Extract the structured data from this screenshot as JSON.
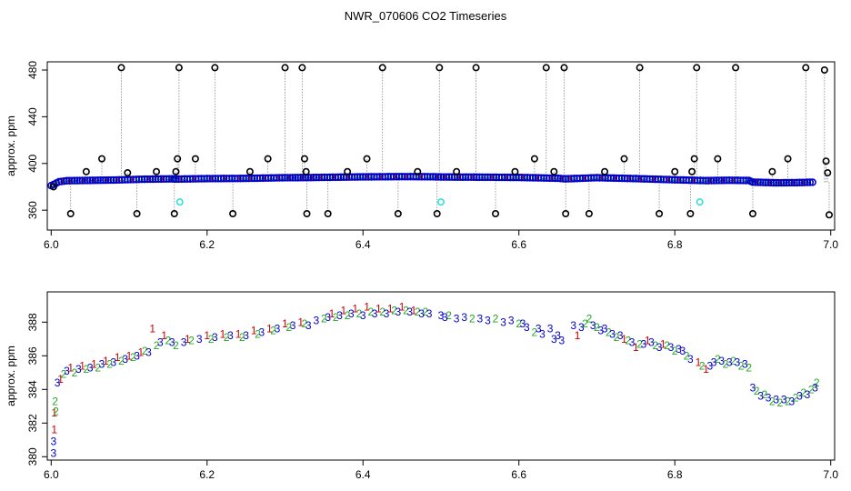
{
  "title": "NWR_070606  CO2 Timeseries",
  "colors": {
    "outlier": "#000000",
    "cyan": "#33dddd",
    "blue": "#0000cc",
    "green": "#22aa22",
    "red": "#cc0000",
    "series3": "#0000cc",
    "line": "#888888"
  },
  "chart_data": [
    {
      "type": "scatter",
      "title": "",
      "xlabel": "",
      "ylabel": "approx. ppm",
      "xlim": [
        5.995,
        7.005
      ],
      "ylim": [
        343,
        487
      ],
      "xticks": [
        6.0,
        6.2,
        6.4,
        6.6,
        6.8,
        7.0
      ],
      "xtick_labels": [
        "6.0",
        "6.2",
        "6.4",
        "6.6",
        "6.8",
        "7.0"
      ],
      "yticks": [
        360,
        400,
        440,
        480
      ],
      "ytick_labels": [
        "360",
        "400",
        "440",
        "480"
      ],
      "baseline": [
        [
          6.0,
          381.0
        ],
        [
          6.01,
          384.3
        ],
        [
          6.02,
          385.2
        ],
        [
          6.05,
          385.5
        ],
        [
          6.08,
          385.8
        ],
        [
          6.12,
          386.5
        ],
        [
          6.155,
          386.8
        ],
        [
          6.16,
          386.6
        ],
        [
          6.2,
          387.0
        ],
        [
          6.25,
          387.2
        ],
        [
          6.3,
          387.8
        ],
        [
          6.33,
          387.9
        ],
        [
          6.34,
          388.0
        ],
        [
          6.4,
          388.5
        ],
        [
          6.45,
          388.7
        ],
        [
          6.49,
          388.6
        ],
        [
          6.5,
          388.4
        ],
        [
          6.56,
          388.2
        ],
        [
          6.6,
          388.0
        ],
        [
          6.65,
          387.3
        ],
        [
          6.66,
          386.8
        ],
        [
          6.7,
          387.8
        ],
        [
          6.75,
          387.0
        ],
        [
          6.8,
          386.0
        ],
        [
          6.84,
          385.3
        ],
        [
          6.87,
          385.6
        ],
        [
          6.895,
          385.4
        ],
        [
          6.9,
          384.0
        ],
        [
          6.93,
          383.4
        ],
        [
          6.96,
          383.6
        ],
        [
          6.98,
          384.0
        ]
      ],
      "outliers": [
        [
          6.003,
          380
        ],
        [
          6.025,
          357
        ],
        [
          6.045,
          393
        ],
        [
          6.065,
          404
        ],
        [
          6.09,
          482
        ],
        [
          6.098,
          392
        ],
        [
          6.11,
          357
        ],
        [
          6.135,
          393
        ],
        [
          6.158,
          357
        ],
        [
          6.16,
          393
        ],
        [
          6.162,
          404
        ],
        [
          6.164,
          482
        ],
        [
          6.185,
          404
        ],
        [
          6.21,
          482
        ],
        [
          6.233,
          357
        ],
        [
          6.255,
          393
        ],
        [
          6.278,
          404
        ],
        [
          6.3,
          482
        ],
        [
          6.322,
          482
        ],
        [
          6.325,
          404
        ],
        [
          6.327,
          393
        ],
        [
          6.328,
          357
        ],
        [
          6.355,
          357
        ],
        [
          6.38,
          393
        ],
        [
          6.405,
          404
        ],
        [
          6.425,
          482
        ],
        [
          6.445,
          357
        ],
        [
          6.47,
          393
        ],
        [
          6.495,
          357
        ],
        [
          6.498,
          482
        ],
        [
          6.52,
          393
        ],
        [
          6.545,
          482
        ],
        [
          6.57,
          357
        ],
        [
          6.595,
          393
        ],
        [
          6.62,
          404
        ],
        [
          6.635,
          482
        ],
        [
          6.645,
          393
        ],
        [
          6.658,
          482
        ],
        [
          6.66,
          357
        ],
        [
          6.69,
          357
        ],
        [
          6.71,
          393
        ],
        [
          6.735,
          404
        ],
        [
          6.755,
          482
        ],
        [
          6.78,
          357
        ],
        [
          6.8,
          393
        ],
        [
          6.82,
          357
        ],
        [
          6.822,
          393
        ],
        [
          6.825,
          404
        ],
        [
          6.828,
          482
        ],
        [
          6.855,
          404
        ],
        [
          6.878,
          482
        ],
        [
          6.9,
          357
        ],
        [
          6.925,
          393
        ],
        [
          6.945,
          404
        ],
        [
          6.968,
          482
        ],
        [
          6.992,
          480
        ],
        [
          6.994,
          402
        ],
        [
          6.996,
          392
        ],
        [
          6.998,
          356
        ]
      ],
      "cyan_points": [
        [
          6.165,
          367
        ],
        [
          6.5,
          367
        ],
        [
          6.832,
          367
        ]
      ]
    },
    {
      "type": "scatter",
      "title": "",
      "xlabel": "",
      "ylabel": "approx. ppm",
      "xlim": [
        5.995,
        7.005
      ],
      "ylim": [
        379.8,
        389.8
      ],
      "xticks": [
        6.0,
        6.2,
        6.4,
        6.6,
        6.8,
        7.0
      ],
      "xtick_labels": [
        "6.0",
        "6.2",
        "6.4",
        "6.6",
        "6.8",
        "7.0"
      ],
      "yticks": [
        380,
        382,
        384,
        386,
        388
      ],
      "ytick_labels": [
        "380",
        "382",
        "384",
        "386",
        "388"
      ],
      "series": [
        {
          "name": "1",
          "symbol": "1",
          "color": "red"
        },
        {
          "name": "2",
          "symbol": "2",
          "color": "green"
        },
        {
          "name": "3",
          "symbol": "3",
          "color": "blue"
        }
      ],
      "points": [
        [
          6.003,
          380.2,
          "3"
        ],
        [
          6.003,
          380.9,
          "3"
        ],
        [
          6.004,
          381.6,
          "1"
        ],
        [
          6.004,
          382.6,
          "1"
        ],
        [
          6.005,
          383.3,
          "2"
        ],
        [
          6.006,
          382.7,
          "2"
        ],
        [
          6.008,
          384.4,
          "3"
        ],
        [
          6.012,
          384.6,
          "1"
        ],
        [
          6.016,
          384.9,
          "2"
        ],
        [
          6.02,
          385.1,
          "3"
        ],
        [
          6.025,
          385.3,
          "1"
        ],
        [
          6.03,
          385.0,
          "2"
        ],
        [
          6.035,
          385.2,
          "3"
        ],
        [
          6.04,
          385.4,
          "1"
        ],
        [
          6.045,
          385.2,
          "2"
        ],
        [
          6.05,
          385.3,
          "3"
        ],
        [
          6.055,
          385.5,
          "1"
        ],
        [
          6.06,
          385.3,
          "2"
        ],
        [
          6.065,
          385.5,
          "3"
        ],
        [
          6.07,
          385.7,
          "1"
        ],
        [
          6.075,
          385.5,
          "2"
        ],
        [
          6.08,
          385.6,
          "3"
        ],
        [
          6.085,
          385.9,
          "1"
        ],
        [
          6.09,
          385.7,
          "2"
        ],
        [
          6.095,
          385.8,
          "3"
        ],
        [
          6.1,
          386.0,
          "1"
        ],
        [
          6.105,
          385.9,
          "2"
        ],
        [
          6.11,
          386.0,
          "3"
        ],
        [
          6.115,
          386.2,
          "1"
        ],
        [
          6.12,
          386.3,
          "2"
        ],
        [
          6.125,
          386.2,
          "3"
        ],
        [
          6.13,
          387.6,
          "1"
        ],
        [
          6.135,
          386.6,
          "2"
        ],
        [
          6.14,
          386.8,
          "3"
        ],
        [
          6.145,
          387.2,
          "1"
        ],
        [
          6.15,
          386.9,
          "2"
        ],
        [
          6.155,
          386.8,
          "3"
        ],
        [
          6.16,
          386.6,
          "2"
        ],
        [
          6.17,
          386.8,
          "3"
        ],
        [
          6.175,
          387.0,
          "1"
        ],
        [
          6.18,
          386.9,
          "2"
        ],
        [
          6.19,
          387.0,
          "3"
        ],
        [
          6.2,
          387.2,
          "1"
        ],
        [
          6.205,
          387.0,
          "2"
        ],
        [
          6.21,
          387.1,
          "3"
        ],
        [
          6.22,
          387.3,
          "1"
        ],
        [
          6.225,
          387.1,
          "2"
        ],
        [
          6.23,
          387.2,
          "3"
        ],
        [
          6.24,
          387.3,
          "1"
        ],
        [
          6.245,
          387.1,
          "2"
        ],
        [
          6.25,
          387.2,
          "3"
        ],
        [
          6.26,
          387.5,
          "1"
        ],
        [
          6.265,
          387.3,
          "2"
        ],
        [
          6.27,
          387.4,
          "3"
        ],
        [
          6.28,
          387.6,
          "1"
        ],
        [
          6.285,
          387.5,
          "2"
        ],
        [
          6.29,
          387.6,
          "3"
        ],
        [
          6.3,
          387.9,
          "1"
        ],
        [
          6.305,
          387.7,
          "2"
        ],
        [
          6.31,
          387.8,
          "3"
        ],
        [
          6.32,
          388.0,
          "1"
        ],
        [
          6.325,
          387.9,
          "2"
        ],
        [
          6.33,
          387.8,
          "3"
        ],
        [
          6.34,
          388.1,
          "3"
        ],
        [
          6.35,
          388.2,
          "2"
        ],
        [
          6.355,
          388.3,
          "3"
        ],
        [
          6.36,
          388.5,
          "1"
        ],
        [
          6.365,
          388.3,
          "2"
        ],
        [
          6.37,
          388.4,
          "3"
        ],
        [
          6.375,
          388.7,
          "1"
        ],
        [
          6.38,
          388.4,
          "2"
        ],
        [
          6.385,
          388.5,
          "3"
        ],
        [
          6.39,
          388.8,
          "1"
        ],
        [
          6.395,
          388.5,
          "2"
        ],
        [
          6.4,
          388.4,
          "3"
        ],
        [
          6.405,
          388.9,
          "1"
        ],
        [
          6.41,
          388.6,
          "2"
        ],
        [
          6.415,
          388.5,
          "3"
        ],
        [
          6.42,
          388.8,
          "1"
        ],
        [
          6.425,
          388.6,
          "2"
        ],
        [
          6.43,
          388.5,
          "3"
        ],
        [
          6.435,
          388.8,
          "1"
        ],
        [
          6.44,
          388.7,
          "2"
        ],
        [
          6.445,
          388.6,
          "3"
        ],
        [
          6.45,
          388.9,
          "1"
        ],
        [
          6.455,
          388.7,
          "2"
        ],
        [
          6.46,
          388.6,
          "3"
        ],
        [
          6.465,
          388.7,
          "1"
        ],
        [
          6.47,
          388.6,
          "2"
        ],
        [
          6.475,
          388.5,
          "3"
        ],
        [
          6.48,
          388.6,
          "2"
        ],
        [
          6.485,
          388.5,
          "3"
        ],
        [
          6.5,
          388.4,
          "3"
        ],
        [
          6.505,
          388.3,
          "3"
        ],
        [
          6.51,
          388.4,
          "2"
        ],
        [
          6.52,
          388.2,
          "3"
        ],
        [
          6.53,
          388.3,
          "3"
        ],
        [
          6.54,
          388.2,
          "2"
        ],
        [
          6.55,
          388.2,
          "3"
        ],
        [
          6.56,
          388.1,
          "3"
        ],
        [
          6.57,
          388.2,
          "2"
        ],
        [
          6.58,
          388.0,
          "3"
        ],
        [
          6.59,
          388.1,
          "3"
        ],
        [
          6.6,
          387.9,
          "2"
        ],
        [
          6.605,
          387.9,
          "3"
        ],
        [
          6.61,
          387.7,
          "3"
        ],
        [
          6.62,
          387.4,
          "2"
        ],
        [
          6.625,
          387.6,
          "3"
        ],
        [
          6.63,
          387.3,
          "3"
        ],
        [
          6.64,
          387.6,
          "3"
        ],
        [
          6.645,
          387.0,
          "3"
        ],
        [
          6.65,
          387.2,
          "3"
        ],
        [
          6.655,
          386.9,
          "3"
        ],
        [
          6.67,
          387.8,
          "3"
        ],
        [
          6.675,
          387.2,
          "1"
        ],
        [
          6.68,
          387.7,
          "3"
        ],
        [
          6.685,
          387.9,
          "2"
        ],
        [
          6.69,
          388.2,
          "2"
        ],
        [
          6.695,
          387.8,
          "3"
        ],
        [
          6.7,
          387.7,
          "2"
        ],
        [
          6.705,
          387.5,
          "3"
        ],
        [
          6.71,
          387.6,
          "3"
        ],
        [
          6.715,
          387.4,
          "2"
        ],
        [
          6.72,
          387.3,
          "3"
        ],
        [
          6.725,
          387.1,
          "2"
        ],
        [
          6.73,
          387.2,
          "3"
        ],
        [
          6.735,
          387.0,
          "1"
        ],
        [
          6.74,
          386.9,
          "2"
        ],
        [
          6.745,
          386.8,
          "3"
        ],
        [
          6.75,
          386.5,
          "1"
        ],
        [
          6.755,
          386.7,
          "2"
        ],
        [
          6.76,
          386.7,
          "3"
        ],
        [
          6.765,
          386.9,
          "1"
        ],
        [
          6.77,
          386.8,
          "3"
        ],
        [
          6.775,
          386.6,
          "2"
        ],
        [
          6.78,
          386.5,
          "3"
        ],
        [
          6.785,
          386.7,
          "1"
        ],
        [
          6.79,
          386.6,
          "2"
        ],
        [
          6.795,
          386.5,
          "3"
        ],
        [
          6.8,
          386.3,
          "2"
        ],
        [
          6.805,
          386.4,
          "3"
        ],
        [
          6.81,
          386.3,
          "3"
        ],
        [
          6.815,
          386.0,
          "2"
        ],
        [
          6.82,
          385.8,
          "3"
        ],
        [
          6.83,
          385.6,
          "1"
        ],
        [
          6.835,
          385.4,
          "2"
        ],
        [
          6.84,
          385.2,
          "1"
        ],
        [
          6.845,
          385.4,
          "3"
        ],
        [
          6.85,
          385.6,
          "3"
        ],
        [
          6.855,
          385.8,
          "2"
        ],
        [
          6.86,
          385.7,
          "3"
        ],
        [
          6.865,
          385.5,
          "2"
        ],
        [
          6.87,
          385.6,
          "3"
        ],
        [
          6.875,
          385.7,
          "2"
        ],
        [
          6.88,
          385.6,
          "3"
        ],
        [
          6.885,
          385.4,
          "2"
        ],
        [
          6.89,
          385.5,
          "3"
        ],
        [
          6.895,
          385.3,
          "2"
        ],
        [
          6.9,
          384.1,
          "3"
        ],
        [
          6.905,
          383.9,
          "2"
        ],
        [
          6.91,
          383.6,
          "3"
        ],
        [
          6.915,
          383.7,
          "2"
        ],
        [
          6.92,
          383.5,
          "3"
        ],
        [
          6.925,
          383.3,
          "2"
        ],
        [
          6.93,
          383.4,
          "3"
        ],
        [
          6.935,
          383.2,
          "2"
        ],
        [
          6.94,
          383.4,
          "3"
        ],
        [
          6.945,
          383.3,
          "2"
        ],
        [
          6.95,
          383.3,
          "3"
        ],
        [
          6.955,
          383.5,
          "2"
        ],
        [
          6.96,
          383.6,
          "3"
        ],
        [
          6.965,
          383.8,
          "2"
        ],
        [
          6.97,
          383.7,
          "3"
        ],
        [
          6.975,
          384.0,
          "2"
        ],
        [
          6.98,
          384.1,
          "3"
        ],
        [
          6.982,
          384.4,
          "2"
        ]
      ]
    }
  ]
}
